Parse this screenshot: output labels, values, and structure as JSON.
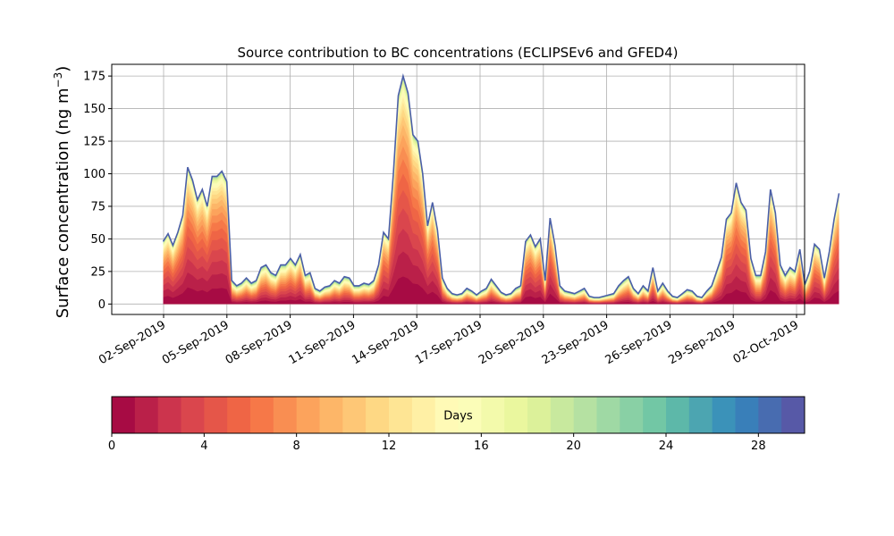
{
  "chart_data": {
    "type": "area",
    "title": "Source contribution to BC concentrations (ECLIPSEv6 and GFED4)",
    "ylabel": "Surface concentration (ng m",
    "ylabel_sup": "−3",
    "ylabel_close": ")",
    "xlabel": "",
    "x_start": "2019-09-01",
    "x_end": "2019-10-02",
    "xlim": [
      "2019-08-31T00:00",
      "2019-10-03T00:00"
    ],
    "ylim": [
      -8,
      184
    ],
    "y_ticks": [
      0,
      25,
      50,
      75,
      100,
      125,
      150,
      175
    ],
    "x_ticks": [
      "2019-09-02",
      "2019-09-05",
      "2019-09-08",
      "2019-09-11",
      "2019-09-14",
      "2019-09-17",
      "2019-09-20",
      "2019-09-23",
      "2019-09-26",
      "2019-09-29",
      "2019-10-02"
    ],
    "x_tick_labels": [
      "02-Sep-2019",
      "05-Sep-2019",
      "08-Sep-2019",
      "11-Sep-2019",
      "14-Sep-2019",
      "17-Sep-2019",
      "20-Sep-2019",
      "23-Sep-2019",
      "26-Sep-2019",
      "29-Sep-2019",
      "02-Oct-2019"
    ],
    "grid": true,
    "colormap": "Spectral",
    "n_layers": 30,
    "total_series": [
      [
        "2019-09-01T00:00",
        48
      ],
      [
        "2019-09-01T06:00",
        54
      ],
      [
        "2019-09-01T12:00",
        45
      ],
      [
        "2019-09-01T18:00",
        55
      ],
      [
        "2019-09-02T00:00",
        68
      ],
      [
        "2019-09-02T06:00",
        105
      ],
      [
        "2019-09-02T09:00",
        95
      ],
      [
        "2019-09-02T12:00",
        80
      ],
      [
        "2019-09-02T18:00",
        88
      ],
      [
        "2019-09-03T00:00",
        75
      ],
      [
        "2019-09-03T06:00",
        98
      ],
      [
        "2019-09-03T12:00",
        98
      ],
      [
        "2019-09-03T18:00",
        102
      ],
      [
        "2019-09-04T00:00",
        94
      ],
      [
        "2019-09-04T06:00",
        18
      ],
      [
        "2019-09-04T12:00",
        14
      ],
      [
        "2019-09-04T18:00",
        16
      ],
      [
        "2019-09-05T00:00",
        20
      ],
      [
        "2019-09-05T06:00",
        16
      ],
      [
        "2019-09-05T12:00",
        18
      ],
      [
        "2019-09-05T18:00",
        28
      ],
      [
        "2019-09-06T00:00",
        30
      ],
      [
        "2019-09-06T06:00",
        24
      ],
      [
        "2019-09-06T12:00",
        22
      ],
      [
        "2019-09-06T18:00",
        30
      ],
      [
        "2019-09-07T00:00",
        30
      ],
      [
        "2019-09-07T06:00",
        35
      ],
      [
        "2019-09-07T12:00",
        30
      ],
      [
        "2019-09-07T18:00",
        38
      ],
      [
        "2019-09-08T00:00",
        22
      ],
      [
        "2019-09-08T06:00",
        24
      ],
      [
        "2019-09-08T12:00",
        12
      ],
      [
        "2019-09-08T18:00",
        10
      ],
      [
        "2019-09-09T00:00",
        13
      ],
      [
        "2019-09-09T06:00",
        14
      ],
      [
        "2019-09-09T12:00",
        18
      ],
      [
        "2019-09-09T18:00",
        16
      ],
      [
        "2019-09-10T00:00",
        21
      ],
      [
        "2019-09-10T06:00",
        20
      ],
      [
        "2019-09-10T12:00",
        14
      ],
      [
        "2019-09-10T18:00",
        14
      ],
      [
        "2019-09-11T00:00",
        16
      ],
      [
        "2019-09-11T06:00",
        15
      ],
      [
        "2019-09-11T12:00",
        18
      ],
      [
        "2019-09-11T18:00",
        30
      ],
      [
        "2019-09-12T00:00",
        55
      ],
      [
        "2019-09-12T06:00",
        50
      ],
      [
        "2019-09-12T12:00",
        100
      ],
      [
        "2019-09-12T18:00",
        160
      ],
      [
        "2019-09-13T00:00",
        175
      ],
      [
        "2019-09-13T06:00",
        162
      ],
      [
        "2019-09-13T12:00",
        130
      ],
      [
        "2019-09-13T18:00",
        125
      ],
      [
        "2019-09-14T00:00",
        100
      ],
      [
        "2019-09-14T06:00",
        60
      ],
      [
        "2019-09-14T09:00",
        78
      ],
      [
        "2019-09-14T12:00",
        57
      ],
      [
        "2019-09-14T18:00",
        20
      ],
      [
        "2019-09-15T00:00",
        12
      ],
      [
        "2019-09-15T06:00",
        8
      ],
      [
        "2019-09-15T12:00",
        7
      ],
      [
        "2019-09-15T18:00",
        8
      ],
      [
        "2019-09-16T00:00",
        12
      ],
      [
        "2019-09-16T06:00",
        10
      ],
      [
        "2019-09-16T12:00",
        7
      ],
      [
        "2019-09-16T18:00",
        10
      ],
      [
        "2019-09-17T00:00",
        12
      ],
      [
        "2019-09-17T06:00",
        19
      ],
      [
        "2019-09-17T12:00",
        14
      ],
      [
        "2019-09-17T18:00",
        9
      ],
      [
        "2019-09-18T00:00",
        7
      ],
      [
        "2019-09-18T06:00",
        8
      ],
      [
        "2019-09-18T12:00",
        12
      ],
      [
        "2019-09-18T18:00",
        14
      ],
      [
        "2019-09-19T00:00",
        48
      ],
      [
        "2019-09-19T03:00",
        53
      ],
      [
        "2019-09-19T06:00",
        44
      ],
      [
        "2019-09-19T09:00",
        50
      ],
      [
        "2019-09-19T12:00",
        18
      ],
      [
        "2019-09-19T18:00",
        66
      ],
      [
        "2019-09-20T00:00",
        45
      ],
      [
        "2019-09-20T06:00",
        14
      ],
      [
        "2019-09-20T12:00",
        10
      ],
      [
        "2019-09-20T18:00",
        9
      ],
      [
        "2019-09-21T00:00",
        8
      ],
      [
        "2019-09-21T06:00",
        10
      ],
      [
        "2019-09-21T12:00",
        12
      ],
      [
        "2019-09-21T18:00",
        6
      ],
      [
        "2019-09-22T00:00",
        5
      ],
      [
        "2019-09-22T06:00",
        5
      ],
      [
        "2019-09-22T12:00",
        6
      ],
      [
        "2019-09-22T18:00",
        7
      ],
      [
        "2019-09-23T00:00",
        8
      ],
      [
        "2019-09-23T06:00",
        14
      ],
      [
        "2019-09-23T12:00",
        18
      ],
      [
        "2019-09-23T18:00",
        21
      ],
      [
        "2019-09-24T00:00",
        12
      ],
      [
        "2019-09-24T06:00",
        8
      ],
      [
        "2019-09-24T12:00",
        14
      ],
      [
        "2019-09-24T18:00",
        10
      ],
      [
        "2019-09-25T00:00",
        28
      ],
      [
        "2019-09-25T06:00",
        10
      ],
      [
        "2019-09-25T12:00",
        16
      ],
      [
        "2019-09-25T18:00",
        10
      ],
      [
        "2019-09-26T00:00",
        6
      ],
      [
        "2019-09-26T06:00",
        5
      ],
      [
        "2019-09-26T12:00",
        8
      ],
      [
        "2019-09-26T18:00",
        11
      ],
      [
        "2019-09-27T00:00",
        10
      ],
      [
        "2019-09-27T06:00",
        6
      ],
      [
        "2019-09-27T12:00",
        5
      ],
      [
        "2019-09-27T18:00",
        10
      ],
      [
        "2019-09-28T00:00",
        14
      ],
      [
        "2019-09-28T06:00",
        25
      ],
      [
        "2019-09-28T12:00",
        36
      ],
      [
        "2019-09-28T18:00",
        65
      ],
      [
        "2019-09-29T00:00",
        70
      ],
      [
        "2019-09-29T06:00",
        93
      ],
      [
        "2019-09-29T12:00",
        78
      ],
      [
        "2019-09-29T18:00",
        72
      ],
      [
        "2019-09-30T00:00",
        35
      ],
      [
        "2019-09-30T06:00",
        22
      ],
      [
        "2019-09-30T12:00",
        22
      ],
      [
        "2019-09-30T18:00",
        40
      ],
      [
        "2019-10-01T00:00",
        88
      ],
      [
        "2019-10-01T06:00",
        70
      ],
      [
        "2019-10-01T12:00",
        30
      ],
      [
        "2019-10-01T18:00",
        22
      ],
      [
        "2019-10-02T00:00",
        28
      ],
      [
        "2019-10-02T06:00",
        25
      ],
      [
        "2019-10-02T12:00",
        42
      ],
      [
        "2019-10-02T18:00",
        15
      ],
      [
        "2019-10-03T00:00",
        25
      ],
      [
        "2019-10-03T06:00",
        46
      ],
      [
        "2019-10-03T12:00",
        42
      ],
      [
        "2019-10-03T18:00",
        20
      ],
      [
        "2019-10-04T00:00",
        40
      ],
      [
        "2019-10-04T06:00",
        65
      ],
      [
        "2019-10-04T12:00",
        85
      ]
    ]
  },
  "colorbar": {
    "label": "Days",
    "range": [
      0,
      30
    ],
    "ticks": [
      0,
      4,
      8,
      12,
      16,
      20,
      24,
      28
    ],
    "n_bins": 30
  }
}
